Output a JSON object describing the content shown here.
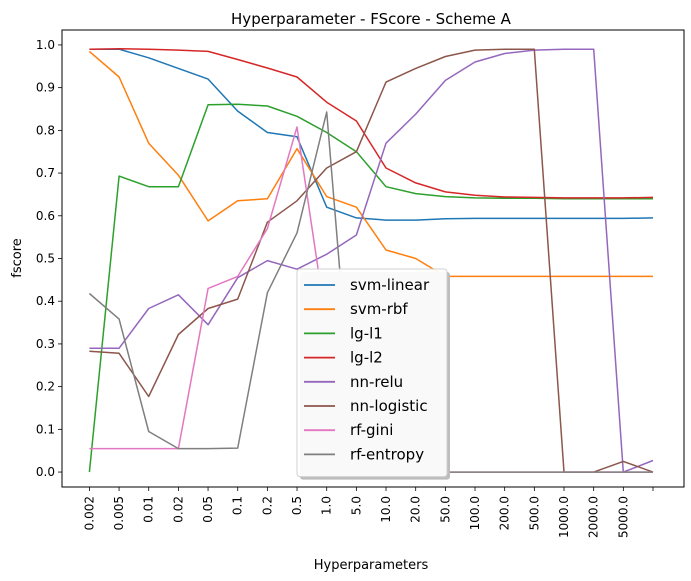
{
  "chart_data": {
    "type": "line",
    "title": "Hyperparameter - FScore - Scheme A",
    "xlabel": "Hyperparameters",
    "ylabel": "fscore",
    "categories": [
      "0.002",
      "0.005",
      "0.01",
      "0.02",
      "0.05",
      "0.1",
      "0.2",
      "0.5",
      "1.0",
      "5.0",
      "10.0",
      "20.0",
      "50.0",
      "100.0",
      "200.0",
      "500.0",
      "1000.0",
      "2000.0",
      "5000.0",
      ""
    ],
    "yticks": [
      "0.0",
      "0.1",
      "0.2",
      "0.3",
      "0.4",
      "0.5",
      "0.6",
      "0.7",
      "0.8",
      "0.9",
      "1.0"
    ],
    "ylim": [
      -0.035,
      1.035
    ],
    "grid": false,
    "legend_position": "lower-center",
    "series": [
      {
        "name": "svm-linear",
        "color": "#1f77b4",
        "values": [
          0.99,
          0.99,
          0.97,
          0.945,
          0.92,
          0.845,
          0.795,
          0.785,
          0.62,
          0.595,
          0.59,
          0.59,
          0.593,
          0.594,
          0.594,
          0.594,
          0.594,
          0.594,
          0.594,
          0.595
        ]
      },
      {
        "name": "svm-rbf",
        "color": "#ff7f0e",
        "values": [
          0.985,
          0.925,
          0.77,
          0.695,
          0.588,
          0.635,
          0.64,
          0.757,
          0.645,
          0.62,
          0.52,
          0.5,
          0.458,
          0.458,
          0.458,
          0.458,
          0.458,
          0.458,
          0.458,
          0.458
        ]
      },
      {
        "name": "lg-l1",
        "color": "#2ca02c",
        "values": [
          0.0,
          0.693,
          0.668,
          0.668,
          0.86,
          0.861,
          0.857,
          0.833,
          0.795,
          0.75,
          0.668,
          0.652,
          0.645,
          0.642,
          0.641,
          0.641,
          0.64,
          0.64,
          0.64,
          0.64
        ]
      },
      {
        "name": "lg-l2",
        "color": "#d62728",
        "values": [
          0.99,
          0.991,
          0.99,
          0.988,
          0.985,
          0.966,
          0.946,
          0.925,
          0.866,
          0.822,
          0.712,
          0.677,
          0.656,
          0.648,
          0.644,
          0.643,
          0.642,
          0.642,
          0.642,
          0.643
        ]
      },
      {
        "name": "nn-relu",
        "color": "#9467bd",
        "values": [
          0.29,
          0.29,
          0.383,
          0.415,
          0.345,
          0.455,
          0.495,
          0.475,
          0.51,
          0.555,
          0.77,
          0.838,
          0.917,
          0.96,
          0.98,
          0.988,
          0.99,
          0.99,
          0.0,
          0.027
        ]
      },
      {
        "name": "nn-logistic",
        "color": "#8c564b",
        "values": [
          0.283,
          0.278,
          0.177,
          0.322,
          0.383,
          0.405,
          0.585,
          0.635,
          0.712,
          0.75,
          0.913,
          0.945,
          0.973,
          0.988,
          0.99,
          0.99,
          0.0,
          0.0,
          0.025,
          0.0
        ]
      },
      {
        "name": "rf-gini",
        "color": "#e377c2",
        "values": [
          0.055,
          0.055,
          0.055,
          0.055,
          0.43,
          0.458,
          0.57,
          0.808,
          0.34,
          0.0,
          0.0,
          0.0,
          0.0,
          0.0,
          0.0,
          0.0,
          0.0,
          0.0,
          0.0,
          0.0
        ]
      },
      {
        "name": "rf-entropy",
        "color": "#7f7f7f",
        "values": [
          0.418,
          0.358,
          0.095,
          0.055,
          0.055,
          0.056,
          0.42,
          0.56,
          0.843,
          0.0,
          0.0,
          0.0,
          0.0,
          0.0,
          0.0,
          0.0,
          0.0,
          0.0,
          0.0,
          0.0
        ]
      }
    ]
  }
}
